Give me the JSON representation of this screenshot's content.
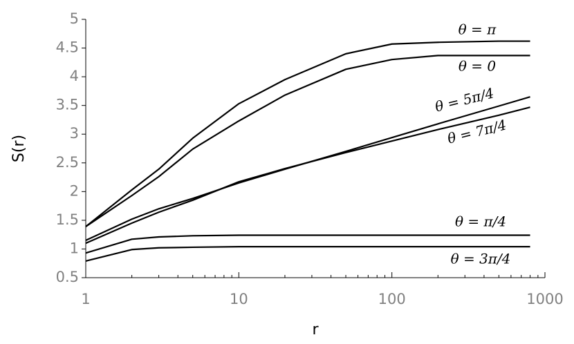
{
  "chart_data": {
    "type": "line",
    "xlabel": "r",
    "ylabel": "S(r)",
    "x": [
      1,
      2,
      3,
      5,
      10,
      20,
      50,
      100,
      200,
      500,
      800
    ],
    "xscale": "log",
    "xlim": [
      1,
      1000
    ],
    "xticks": [
      1,
      10,
      100,
      1000
    ],
    "xminorticks": [
      2,
      3,
      4,
      5,
      6,
      7,
      8,
      9,
      20,
      30,
      40,
      50,
      60,
      70,
      80,
      90,
      200,
      300,
      400,
      500,
      600,
      700,
      800,
      900
    ],
    "ylim": [
      0.5,
      5
    ],
    "yticks": [
      0.5,
      1,
      1.5,
      2,
      2.5,
      3,
      3.5,
      4,
      4.5,
      5
    ],
    "series": [
      {
        "name": "θ = π",
        "color": "#000000",
        "values": [
          1.39,
          2.03,
          2.39,
          2.93,
          3.53,
          3.95,
          4.4,
          4.57,
          4.6,
          4.62,
          4.62
        ]
      },
      {
        "name": "θ = 0",
        "color": "#000000",
        "values": [
          1.39,
          1.93,
          2.26,
          2.74,
          3.23,
          3.68,
          4.13,
          4.3,
          4.37,
          4.37,
          4.37
        ]
      },
      {
        "name": "θ = 5π/4",
        "color": "#000000",
        "values": [
          1.15,
          1.52,
          1.7,
          1.88,
          2.15,
          2.39,
          2.7,
          2.94,
          3.18,
          3.49,
          3.65
        ]
      },
      {
        "name": "θ = 7π/4",
        "color": "#000000",
        "values": [
          1.1,
          1.45,
          1.64,
          1.85,
          2.17,
          2.4,
          2.68,
          2.88,
          3.08,
          3.33,
          3.47
        ]
      },
      {
        "name": "θ = π/4",
        "color": "#000000",
        "values": [
          0.93,
          1.17,
          1.21,
          1.23,
          1.24,
          1.24,
          1.24,
          1.24,
          1.24,
          1.24,
          1.24
        ]
      },
      {
        "name": "θ = 3π/4",
        "color": "#000000",
        "values": [
          0.79,
          0.99,
          1.02,
          1.03,
          1.04,
          1.04,
          1.04,
          1.04,
          1.04,
          1.04,
          1.04
        ]
      }
    ]
  }
}
